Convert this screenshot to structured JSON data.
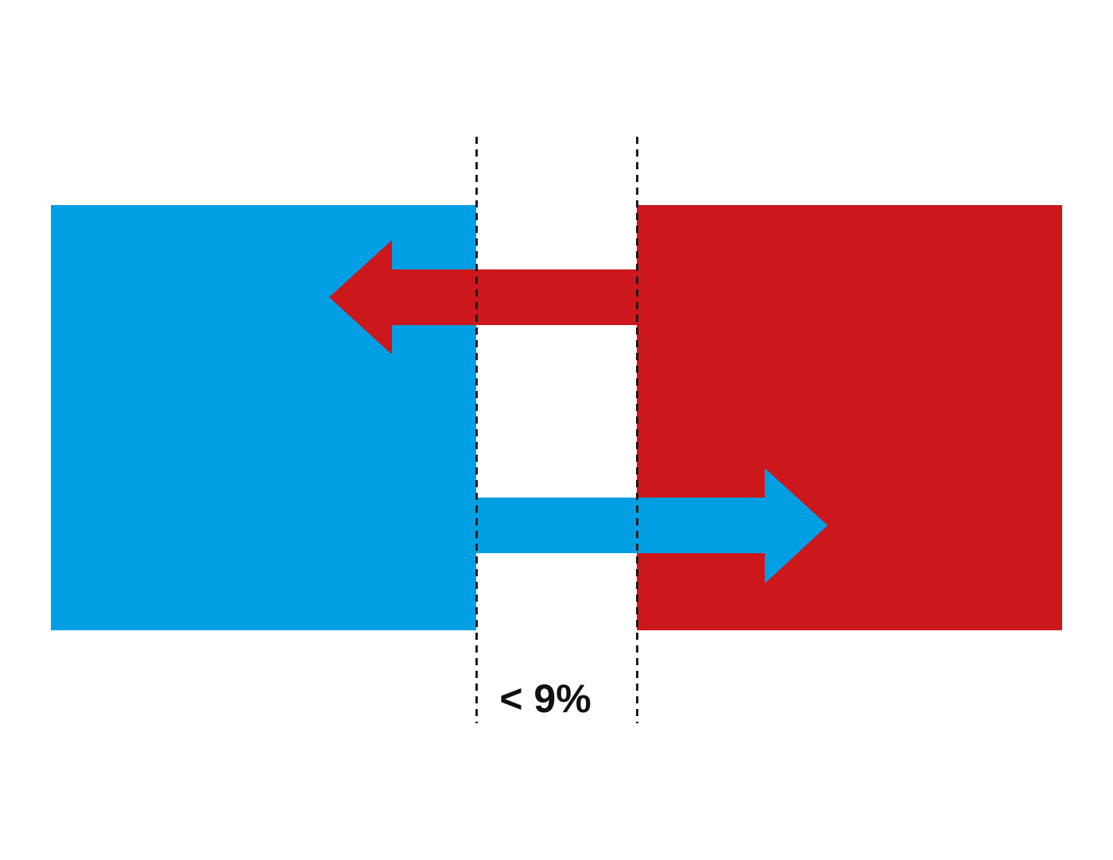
{
  "diagram": {
    "gap_label": "< 9%"
  },
  "colors": {
    "left_block": "#009fe3",
    "right_block": "#cc181c",
    "divider": "#1a1a1a",
    "label": "#111111",
    "background": "#ffffff"
  }
}
